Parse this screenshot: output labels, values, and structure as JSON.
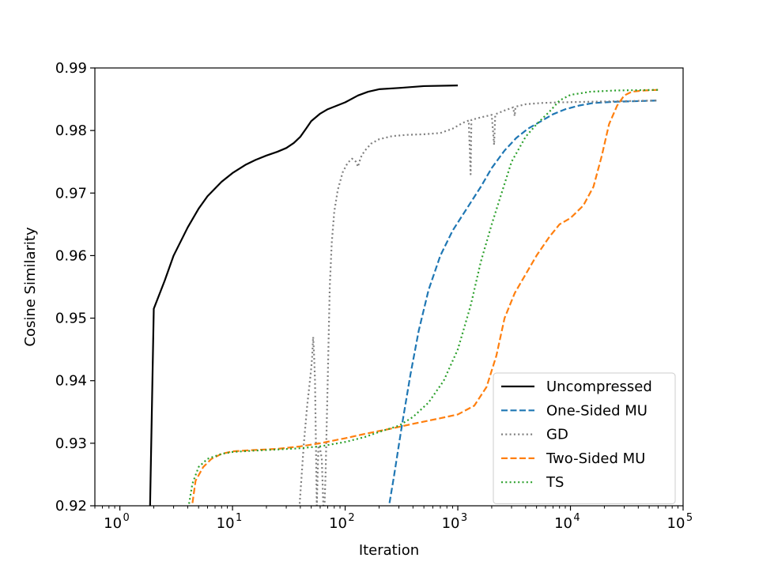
{
  "chart_data": {
    "type": "line",
    "x_scale": "log",
    "xlabel": "Iteration",
    "ylabel": "Cosine Similarity",
    "xlim": [
      0.6,
      100000
    ],
    "ylim": [
      0.92,
      0.99
    ],
    "x_ticks": [
      {
        "value": 1,
        "base": "10",
        "exp": "0"
      },
      {
        "value": 10,
        "base": "10",
        "exp": "1"
      },
      {
        "value": 100,
        "base": "10",
        "exp": "2"
      },
      {
        "value": 1000,
        "base": "10",
        "exp": "3"
      },
      {
        "value": 10000,
        "base": "10",
        "exp": "4"
      },
      {
        "value": 100000,
        "base": "10",
        "exp": "5"
      }
    ],
    "y_ticks": [
      {
        "value": 0.92,
        "label": "0.92"
      },
      {
        "value": 0.93,
        "label": "0.93"
      },
      {
        "value": 0.94,
        "label": "0.94"
      },
      {
        "value": 0.95,
        "label": "0.95"
      },
      {
        "value": 0.96,
        "label": "0.96"
      },
      {
        "value": 0.97,
        "label": "0.97"
      },
      {
        "value": 0.98,
        "label": "0.98"
      },
      {
        "value": 0.99,
        "label": "0.99"
      }
    ],
    "legend_position": "lower-right",
    "series": [
      {
        "name": "Uncompressed",
        "color": "#000000",
        "style": "solid",
        "points": [
          [
            1.85,
            0.919
          ],
          [
            2.0,
            0.9515
          ],
          [
            2.5,
            0.956
          ],
          [
            3,
            0.96
          ],
          [
            4,
            0.9645
          ],
          [
            5,
            0.9675
          ],
          [
            6,
            0.9695
          ],
          [
            8,
            0.9718
          ],
          [
            10,
            0.9732
          ],
          [
            13,
            0.9745
          ],
          [
            16,
            0.9753
          ],
          [
            20,
            0.976
          ],
          [
            25,
            0.9766
          ],
          [
            30,
            0.9772
          ],
          [
            35,
            0.978
          ],
          [
            40,
            0.979
          ],
          [
            45,
            0.9803
          ],
          [
            50,
            0.9815
          ],
          [
            60,
            0.9827
          ],
          [
            70,
            0.9834
          ],
          [
            85,
            0.984
          ],
          [
            100,
            0.9845
          ],
          [
            130,
            0.9856
          ],
          [
            160,
            0.9862
          ],
          [
            200,
            0.9866
          ],
          [
            300,
            0.9868
          ],
          [
            500,
            0.9871
          ],
          [
            1000,
            0.9872
          ]
        ]
      },
      {
        "name": "One-Sided MU",
        "color": "#1f77b4",
        "style": "dashed",
        "points": [
          [
            240,
            0.919
          ],
          [
            270,
            0.9245
          ],
          [
            320,
            0.933
          ],
          [
            380,
            0.941
          ],
          [
            450,
            0.948
          ],
          [
            550,
            0.9545
          ],
          [
            700,
            0.96
          ],
          [
            900,
            0.964
          ],
          [
            1200,
            0.9675
          ],
          [
            1600,
            0.971
          ],
          [
            2000,
            0.974
          ],
          [
            2600,
            0.9768
          ],
          [
            3300,
            0.9788
          ],
          [
            4200,
            0.9803
          ],
          [
            5500,
            0.9815
          ],
          [
            7000,
            0.9826
          ],
          [
            9000,
            0.9834
          ],
          [
            12000,
            0.984
          ],
          [
            16000,
            0.9844
          ],
          [
            25000,
            0.9846
          ],
          [
            40000,
            0.9847
          ],
          [
            60000,
            0.9848
          ]
        ]
      },
      {
        "name": "GD",
        "color": "#7f7f7f",
        "style": "dotted",
        "points": [
          [
            39,
            0.919
          ],
          [
            43,
            0.93
          ],
          [
            46,
            0.936
          ],
          [
            48,
            0.939
          ],
          [
            50,
            0.942
          ],
          [
            51,
            0.944
          ],
          [
            52,
            0.947
          ],
          [
            53,
            0.944
          ],
          [
            54,
            0.94
          ],
          [
            55,
            0.93
          ],
          [
            56,
            0.92
          ],
          [
            57,
            0.925
          ],
          [
            58,
            0.93
          ],
          [
            60,
            0.929
          ],
          [
            62,
            0.9275
          ],
          [
            64,
            0.92
          ],
          [
            65,
            0.918
          ],
          [
            67,
            0.925
          ],
          [
            70,
            0.94
          ],
          [
            73,
            0.955
          ],
          [
            76,
            0.962
          ],
          [
            80,
            0.967
          ],
          [
            86,
            0.9705
          ],
          [
            95,
            0.9733
          ],
          [
            105,
            0.9748
          ],
          [
            115,
            0.9755
          ],
          [
            125,
            0.975
          ],
          [
            130,
            0.9742
          ],
          [
            135,
            0.9752
          ],
          [
            140,
            0.976
          ],
          [
            150,
            0.9768
          ],
          [
            170,
            0.9779
          ],
          [
            200,
            0.9786
          ],
          [
            260,
            0.9791
          ],
          [
            350,
            0.9793
          ],
          [
            500,
            0.9794
          ],
          [
            700,
            0.9796
          ],
          [
            900,
            0.9803
          ],
          [
            1100,
            0.9812
          ],
          [
            1250,
            0.9816
          ],
          [
            1300,
            0.973
          ],
          [
            1320,
            0.9817
          ],
          [
            1600,
            0.9821
          ],
          [
            2000,
            0.9825
          ],
          [
            2100,
            0.9777
          ],
          [
            2150,
            0.9826
          ],
          [
            2600,
            0.9832
          ],
          [
            3100,
            0.9837
          ],
          [
            3200,
            0.9823
          ],
          [
            3250,
            0.9838
          ],
          [
            4000,
            0.9842
          ],
          [
            5500,
            0.9844
          ],
          [
            8000,
            0.9845
          ],
          [
            15000,
            0.9846
          ],
          [
            30000,
            0.9847
          ],
          [
            60000,
            0.9848
          ]
        ]
      },
      {
        "name": "Two-Sided MU",
        "color": "#ff7f0e",
        "style": "dashed",
        "points": [
          [
            4.3,
            0.919
          ],
          [
            4.7,
            0.924
          ],
          [
            5.5,
            0.9262
          ],
          [
            6.5,
            0.9275
          ],
          [
            8,
            0.9283
          ],
          [
            10,
            0.9287
          ],
          [
            15,
            0.9289
          ],
          [
            25,
            0.9291
          ],
          [
            40,
            0.9295
          ],
          [
            60,
            0.93
          ],
          [
            100,
            0.9308
          ],
          [
            150,
            0.9315
          ],
          [
            250,
            0.9323
          ],
          [
            400,
            0.9331
          ],
          [
            700,
            0.934
          ],
          [
            1000,
            0.9346
          ],
          [
            1400,
            0.936
          ],
          [
            1800,
            0.939
          ],
          [
            2200,
            0.944
          ],
          [
            2600,
            0.95
          ],
          [
            3200,
            0.954
          ],
          [
            4000,
            0.957
          ],
          [
            5000,
            0.96
          ],
          [
            6500,
            0.963
          ],
          [
            8000,
            0.965
          ],
          [
            10000,
            0.966
          ],
          [
            13000,
            0.968
          ],
          [
            16000,
            0.971
          ],
          [
            19000,
            0.976
          ],
          [
            22000,
            0.981
          ],
          [
            26000,
            0.984
          ],
          [
            30000,
            0.9856
          ],
          [
            35000,
            0.9862
          ],
          [
            45000,
            0.9864
          ],
          [
            60000,
            0.9865
          ]
        ]
      },
      {
        "name": "TS",
        "color": "#2ca02c",
        "style": "dotted",
        "points": [
          [
            4.0,
            0.919
          ],
          [
            4.4,
            0.9235
          ],
          [
            5,
            0.9262
          ],
          [
            6,
            0.9275
          ],
          [
            8,
            0.9283
          ],
          [
            10,
            0.9286
          ],
          [
            15,
            0.9288
          ],
          [
            25,
            0.929
          ],
          [
            40,
            0.9292
          ],
          [
            60,
            0.9295
          ],
          [
            100,
            0.9302
          ],
          [
            150,
            0.931
          ],
          [
            200,
            0.9318
          ],
          [
            300,
            0.9328
          ],
          [
            400,
            0.9342
          ],
          [
            550,
            0.9365
          ],
          [
            750,
            0.94
          ],
          [
            1000,
            0.945
          ],
          [
            1300,
            0.952
          ],
          [
            1600,
            0.959
          ],
          [
            2000,
            0.965
          ],
          [
            2500,
            0.9705
          ],
          [
            3000,
            0.975
          ],
          [
            4000,
            0.979
          ],
          [
            5000,
            0.981
          ],
          [
            6500,
            0.983
          ],
          [
            8000,
            0.9848
          ],
          [
            10000,
            0.9857
          ],
          [
            15000,
            0.9862
          ],
          [
            25000,
            0.9864
          ],
          [
            60000,
            0.9865
          ]
        ]
      }
    ]
  }
}
